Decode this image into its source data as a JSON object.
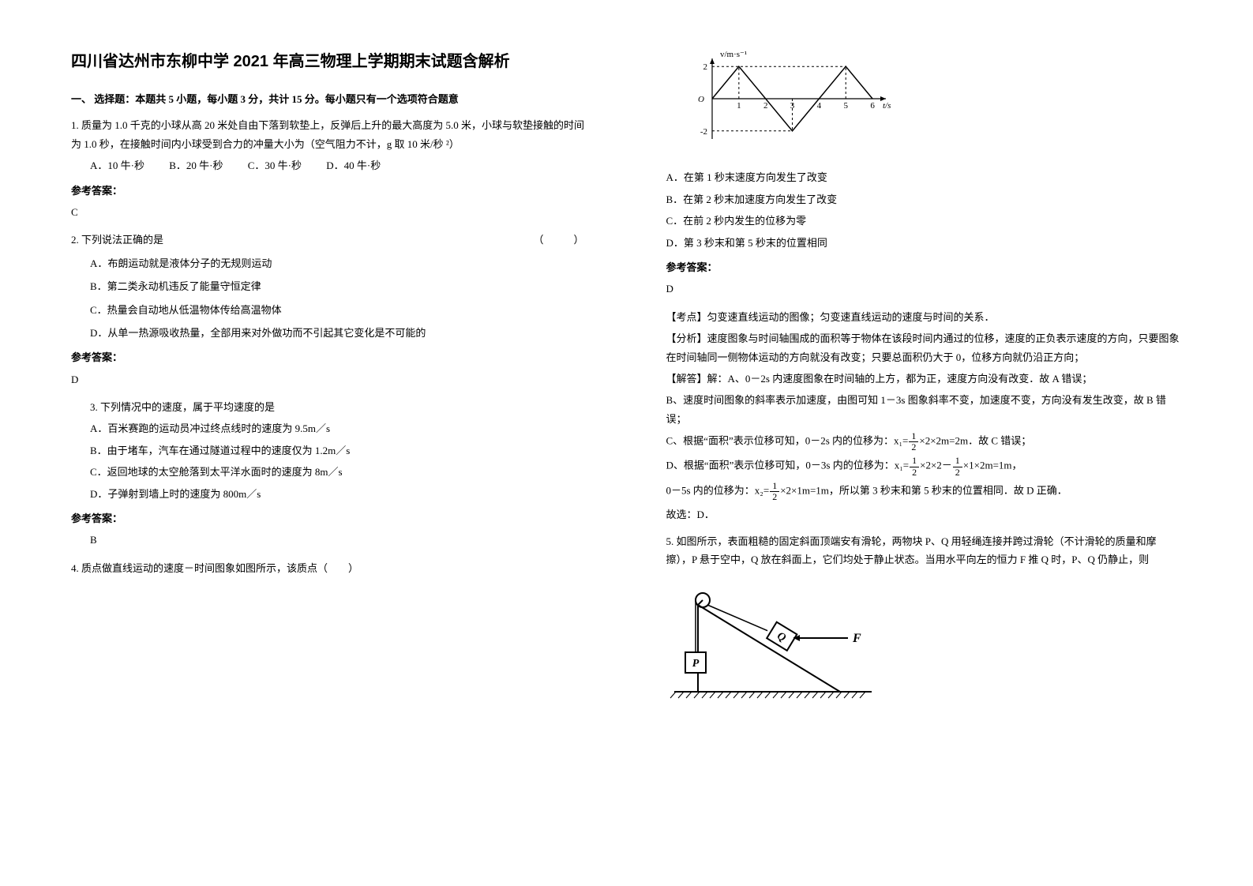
{
  "title": "四川省达州市东柳中学 2021 年高三物理上学期期末试题含解析",
  "section1_head": "一、 选择题：本题共 5 小题，每小题 3 分，共计 15 分。每小题只有一个选项符合题意",
  "q1": {
    "stem": "1. 质量为 1.0 千克的小球从高 20 米处自由下落到软垫上，反弹后上升的最大高度为 5.0 米，小球与软垫接触的时间为 1.0 秒，在接触时间内小球受到合力的冲量大小为（空气阻力不计，g 取 10 米/秒 ²）",
    "optA": "A．10 牛·秒",
    "optB": "B．20 牛·秒",
    "optC": "C．30 牛·秒",
    "optD": "D．40 牛·秒",
    "ans_label": "参考答案：",
    "ans": "C"
  },
  "q2": {
    "stem_l": "2. 下列说法正确的是",
    "stem_r": "（　　）",
    "optA": "A．布朗运动就是液体分子的无规则运动",
    "optB": "B．第二类永动机违反了能量守恒定律",
    "optC": "C．热量会自动地从低温物体传给高温物体",
    "optD": "D．从单一热源吸收热量，全部用来对外做功而不引起其它变化是不可能的",
    "ans_label": "参考答案：",
    "ans": "D"
  },
  "q3": {
    "stem": "3. 下列情况中的速度，属于平均速度的是",
    "optA": "A．百米赛跑的运动员冲过终点线时的速度为 9.5m／s",
    "optB": "B．由于堵车，汽车在通过隧道过程中的速度仅为 1.2m／s",
    "optC": "C．返回地球的太空舱落到太平洋水面时的速度为 8m／s",
    "optD": "D．子弹射到墙上时的速度为 800m／s",
    "ans_label": "参考答案：",
    "ans": "B"
  },
  "q4": {
    "stem": "4. 质点做直线运动的速度－时间图象如图所示，该质点（　　）",
    "chart": {
      "ylabel": "v/m·s⁻¹",
      "xlabel": "t/s",
      "xlim": [
        0,
        6.5
      ],
      "ylim": [
        -2.5,
        2.5
      ],
      "xticks": [
        1,
        2,
        3,
        4,
        5,
        6
      ],
      "yticks": [
        -2,
        2
      ],
      "line_color": "#000000",
      "dash_color": "#000000",
      "axis_color": "#000000",
      "bg": "#ffffff",
      "points": [
        [
          0,
          0
        ],
        [
          1,
          2
        ],
        [
          3,
          -2
        ],
        [
          5,
          2
        ],
        [
          6,
          0
        ]
      ],
      "dashes": [
        [
          [
            0,
            2
          ],
          [
            5,
            2
          ]
        ],
        [
          [
            0,
            -2
          ],
          [
            3,
            -2
          ]
        ],
        [
          [
            1,
            0
          ],
          [
            1,
            2
          ]
        ],
        [
          [
            3,
            0
          ],
          [
            3,
            -2
          ]
        ],
        [
          [
            5,
            0
          ],
          [
            5,
            2
          ]
        ]
      ]
    },
    "optA": "A．在第 1 秒末速度方向发生了改变",
    "optB": "B．在第 2 秒末加速度方向发生了改变",
    "optC": "C．在前 2 秒内发生的位移为零",
    "optD": "D．第 3 秒末和第 5 秒末的位置相同",
    "ans_label": "参考答案：",
    "ans": "D",
    "kp_label": "【考点】匀变速直线运动的图像；匀变速直线运动的速度与时间的关系．",
    "fx_label": "【分析】速度图象与时间轴围成的面积等于物体在该段时间内通过的位移，速度的正负表示速度的方向，只要图象在时间轴同一侧物体运动的方向就没有改变；只要总面积仍大于 0，位移方向就仍沿正方向；",
    "jd_label": "【解答】解：A、0－2s 内速度图象在时间轴的上方，都为正，速度方向没有改变．故 A 错误；",
    "jd_b": "B、速度时间图象的斜率表示加速度，由图可知 1－3s 图象斜率不变，加速度不变，方向没有发生改变，故 B 错误；",
    "jd_c_pre": "C、根据“面积”表示位移可知，0－2s 内的位移为：x₁=",
    "jd_c_post": "×2×2m=2m．故 C 错误；",
    "jd_d_pre": "D、根据“面积”表示位移可知，0－3s 内的位移为：x₁=",
    "jd_d_mid": "×2×2－",
    "jd_d_mid2": "×1×2",
    "jd_d_post": "m=1m，",
    "jd_d2_pre": "0－5s 内的位移为：x₂=",
    "jd_d2_post": "×2×1m=1m，所以第 3 秒末和第 5 秒末的位置相同．故 D 正确．",
    "jd_end": "故选：D．",
    "frac_n": "1",
    "frac_d": "2"
  },
  "q5": {
    "stem": "5. 如图所示，表面粗糙的固定斜面顶端安有滑轮，两物块 P、Q 用轻绳连接并跨过滑轮（不计滑轮的质量和摩擦），P 悬于空中，Q 放在斜面上，它们均处于静止状态。当用水平向左的恒力 F 推 Q 时，P、Q 仍静止，则",
    "diagram": {
      "stroke": "#000000",
      "fill_p": "#ffffff",
      "fill_q": "#ffffff",
      "hatch": "#000000",
      "label_p": "P",
      "label_q": "Q",
      "label_f": "F"
    }
  }
}
